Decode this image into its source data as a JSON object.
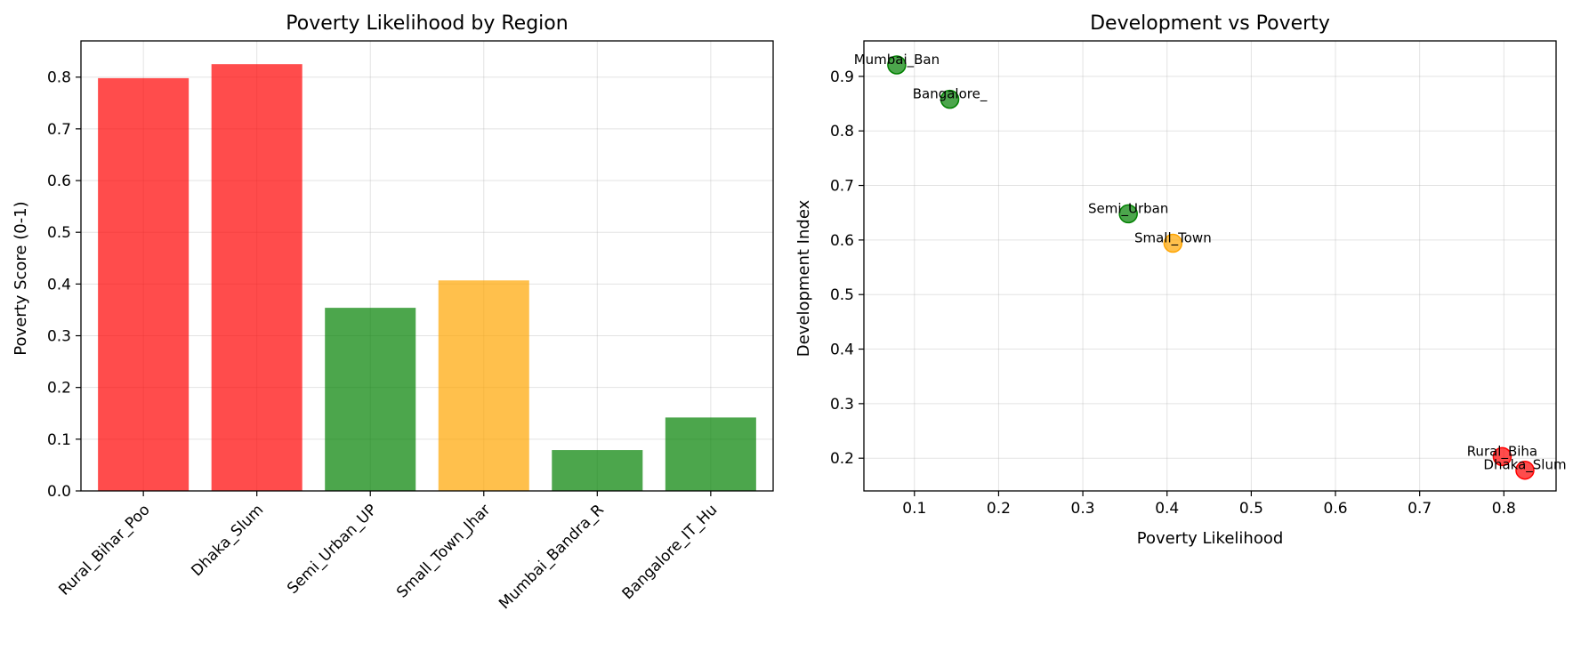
{
  "colors": {
    "high": "#ff0000",
    "medium": "#ffa500",
    "low": "#008000"
  },
  "chart_data": [
    {
      "type": "bar",
      "title": "Poverty Likelihood by Region",
      "xlabel": "",
      "ylabel": "Poverty Score (0-1)",
      "ylim": [
        0,
        0.87
      ],
      "yticks": [
        "0.0",
        "0.1",
        "0.2",
        "0.3",
        "0.4",
        "0.5",
        "0.6",
        "0.7",
        "0.8"
      ],
      "grid": true,
      "categories": [
        "Rural_Bihar_Poo",
        "Dhaka_Slum",
        "Semi_Urban_UP",
        "Small_Town_Jhar",
        "Mumbai_Bandra_R",
        "Bangalore_IT_Hu"
      ],
      "values": [
        0.798,
        0.825,
        0.354,
        0.407,
        0.079,
        0.142
      ],
      "bar_colors": [
        "#ff0000",
        "#ff0000",
        "#008000",
        "#ffa500",
        "#008000",
        "#008000"
      ]
    },
    {
      "type": "scatter",
      "title": "Development vs Poverty",
      "xlabel": "Poverty Likelihood",
      "ylabel": "Development Index",
      "xlim": [
        0.04,
        0.862
      ],
      "ylim": [
        0.14,
        0.965
      ],
      "xticks": [
        "0.1",
        "0.2",
        "0.3",
        "0.4",
        "0.5",
        "0.6",
        "0.7",
        "0.8"
      ],
      "yticks": [
        "0.2",
        "0.3",
        "0.4",
        "0.5",
        "0.6",
        "0.7",
        "0.8",
        "0.9"
      ],
      "grid": true,
      "points": [
        {
          "label": "Rural_Biha",
          "x": 0.798,
          "y": 0.203,
          "color": "#ff0000"
        },
        {
          "label": "Dhaka_Slum",
          "x": 0.825,
          "y": 0.178,
          "color": "#ff0000"
        },
        {
          "label": "Semi_Urban",
          "x": 0.354,
          "y": 0.648,
          "color": "#008000"
        },
        {
          "label": "Small_Town",
          "x": 0.407,
          "y": 0.594,
          "color": "#ffa500"
        },
        {
          "label": "Mumbai_Ban",
          "x": 0.079,
          "y": 0.921,
          "color": "#008000"
        },
        {
          "label": "Bangalore_",
          "x": 0.142,
          "y": 0.858,
          "color": "#008000"
        }
      ]
    }
  ]
}
